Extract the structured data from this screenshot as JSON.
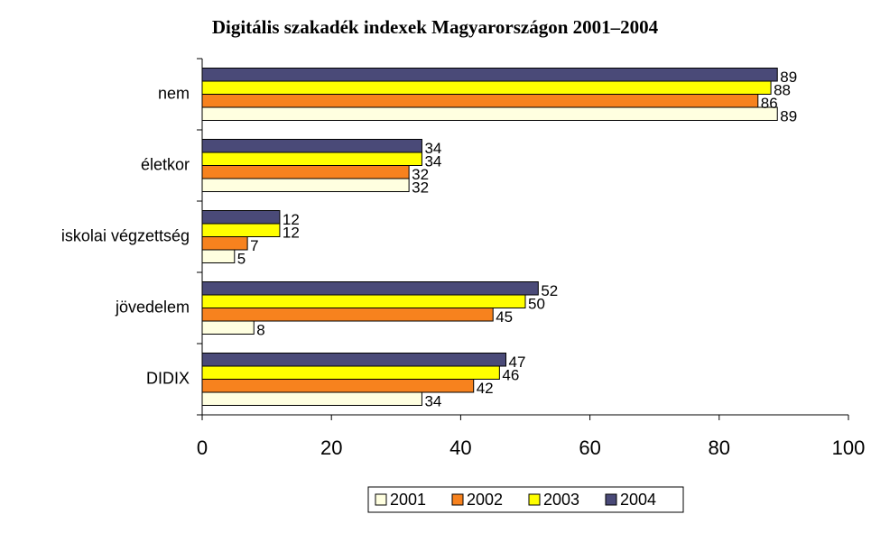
{
  "chart_data": {
    "type": "hbar",
    "title": "Digitális szakadék indexek Magyarországon 2001–2004",
    "categories": [
      "nem",
      "életkor",
      "iskolai végzettség",
      "jövedelem",
      "DIDIX"
    ],
    "series": [
      {
        "name": "2001",
        "color": "#ffffe0",
        "values": [
          89,
          32,
          5,
          8,
          34
        ]
      },
      {
        "name": "2002",
        "color": "#f7821e",
        "values": [
          86,
          32,
          7,
          45,
          42
        ]
      },
      {
        "name": "2003",
        "color": "#ffff00",
        "values": [
          88,
          34,
          12,
          50,
          46
        ]
      },
      {
        "name": "2004",
        "color": "#4a4a78",
        "values": [
          89,
          34,
          12,
          52,
          47
        ]
      }
    ],
    "xlim": [
      0,
      100
    ],
    "xticks": [
      0,
      20,
      40,
      60,
      80,
      100
    ],
    "legend": "bottom"
  }
}
